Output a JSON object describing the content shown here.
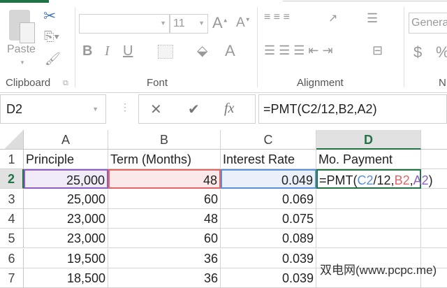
{
  "ribbon": {
    "clipboard": {
      "paste_label": "Paste",
      "group_label": "Clipboard"
    },
    "font": {
      "font_name": "",
      "font_size": "11",
      "group_label": "Font",
      "bold": "B",
      "italic": "I",
      "underline": "U"
    },
    "alignment": {
      "group_label": "Alignment"
    },
    "number": {
      "format": "Genera",
      "group_label": "N",
      "currency": "$",
      "percent": "%"
    }
  },
  "formula_bar": {
    "name_box": "D2",
    "fx": "fx",
    "cancel": "✕",
    "enter": "✔",
    "formula": "=PMT(C2/12,B2,A2)"
  },
  "columns": [
    "A",
    "B",
    "C",
    "D"
  ],
  "rows": [
    {
      "n": "1",
      "cells": [
        "Principle",
        "Term (Months)",
        "Interest Rate",
        "Mo. Payment"
      ]
    },
    {
      "n": "2",
      "cells": [
        "25,000",
        "48",
        "0.049",
        ""
      ]
    },
    {
      "n": "3",
      "cells": [
        "25,000",
        "60",
        "0.069",
        ""
      ]
    },
    {
      "n": "4",
      "cells": [
        "23,000",
        "48",
        "0.075",
        ""
      ]
    },
    {
      "n": "5",
      "cells": [
        "23,000",
        "60",
        "0.089",
        ""
      ]
    },
    {
      "n": "6",
      "cells": [
        "19,500",
        "36",
        "0.039",
        ""
      ]
    },
    {
      "n": "7",
      "cells": [
        "18,500",
        "36",
        "0.039",
        ""
      ]
    }
  ],
  "edit_formula": {
    "eq": "=PMT(",
    "c2": "C2",
    "mid": "/12,",
    "b2": "B2",
    "comma": ",",
    "a2": "A2",
    "close": ")"
  },
  "ref_colors": {
    "A2": "#8e5fc2",
    "B2": "#e06666",
    "C2": "#5b8fd6",
    "active": "#217346"
  },
  "watermark": "双电网(www.pcpc.me)"
}
